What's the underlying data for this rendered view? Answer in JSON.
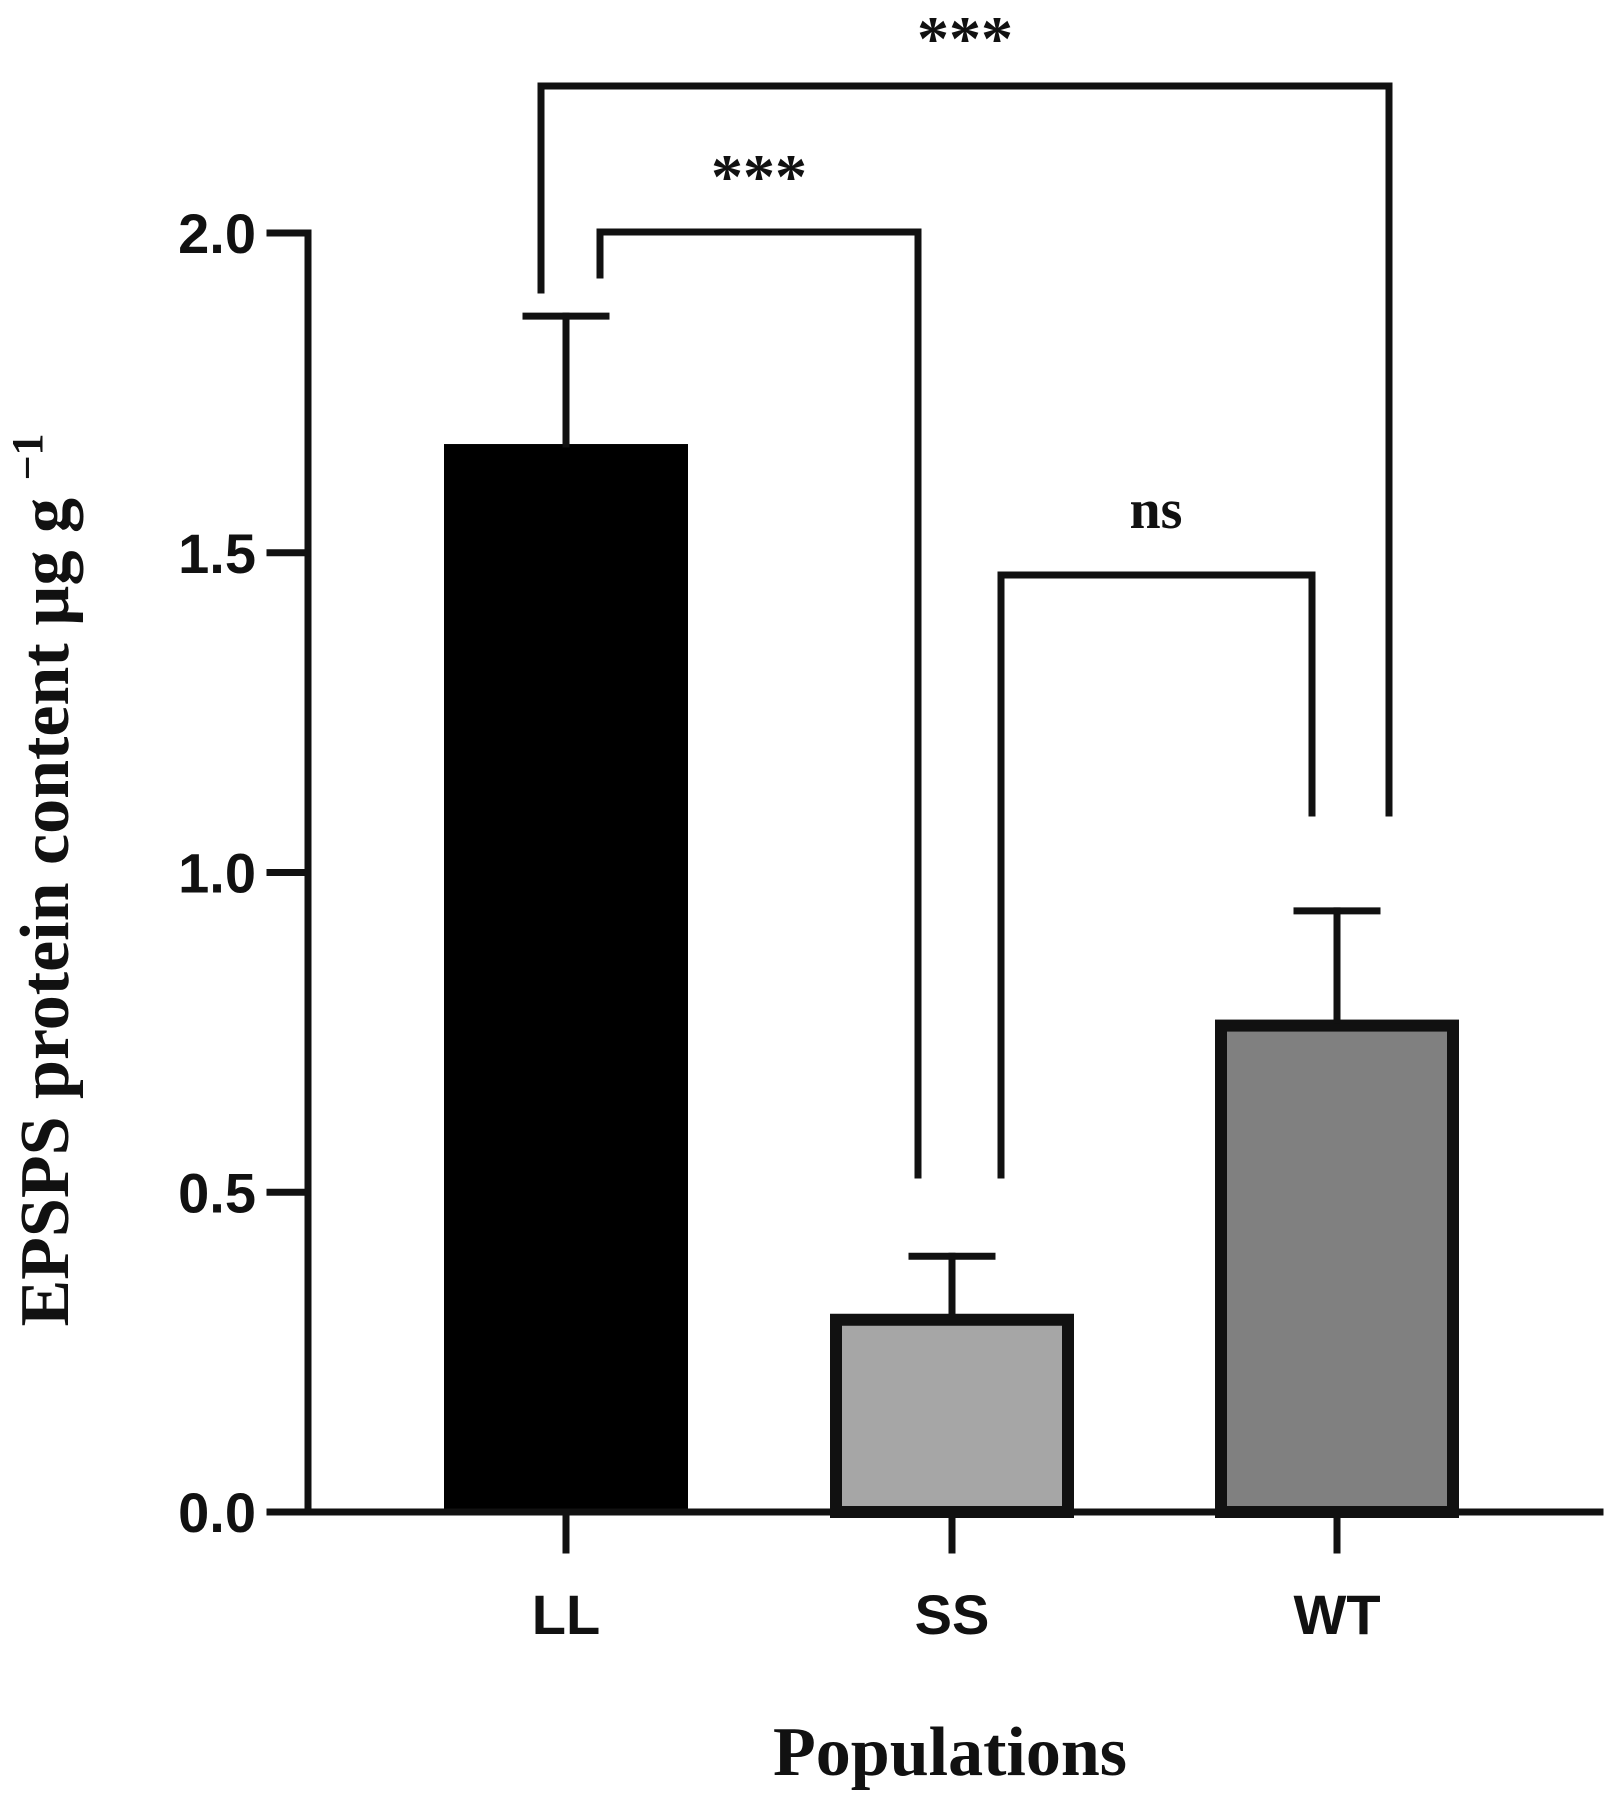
{
  "chart_data": {
    "type": "bar",
    "title": "",
    "xlabel": "Populations",
    "ylabel": "EPSPS protein content µg g",
    "ylabel_superscript": "−1",
    "ylim": [
      0,
      2.0
    ],
    "yticks": [
      0.0,
      0.5,
      1.0,
      1.5,
      2.0
    ],
    "ytick_labels": [
      "0.0",
      "0.5",
      "1.0",
      "1.5",
      "2.0"
    ],
    "grid": false,
    "categories": [
      "LL",
      "SS",
      "WT"
    ],
    "values": [
      1.67,
      0.31,
      0.77
    ],
    "errors": [
      0.2,
      0.09,
      0.17
    ],
    "colors": [
      "#000000",
      "#a6a6a6",
      "#808080"
    ],
    "edge_color": "#111111",
    "significance": [
      {
        "label": "***",
        "from": "LL",
        "to": "SS"
      },
      {
        "label": "***",
        "from": "LL",
        "to": "WT"
      },
      {
        "label": "ns",
        "from": "SS",
        "to": "WT"
      }
    ]
  }
}
